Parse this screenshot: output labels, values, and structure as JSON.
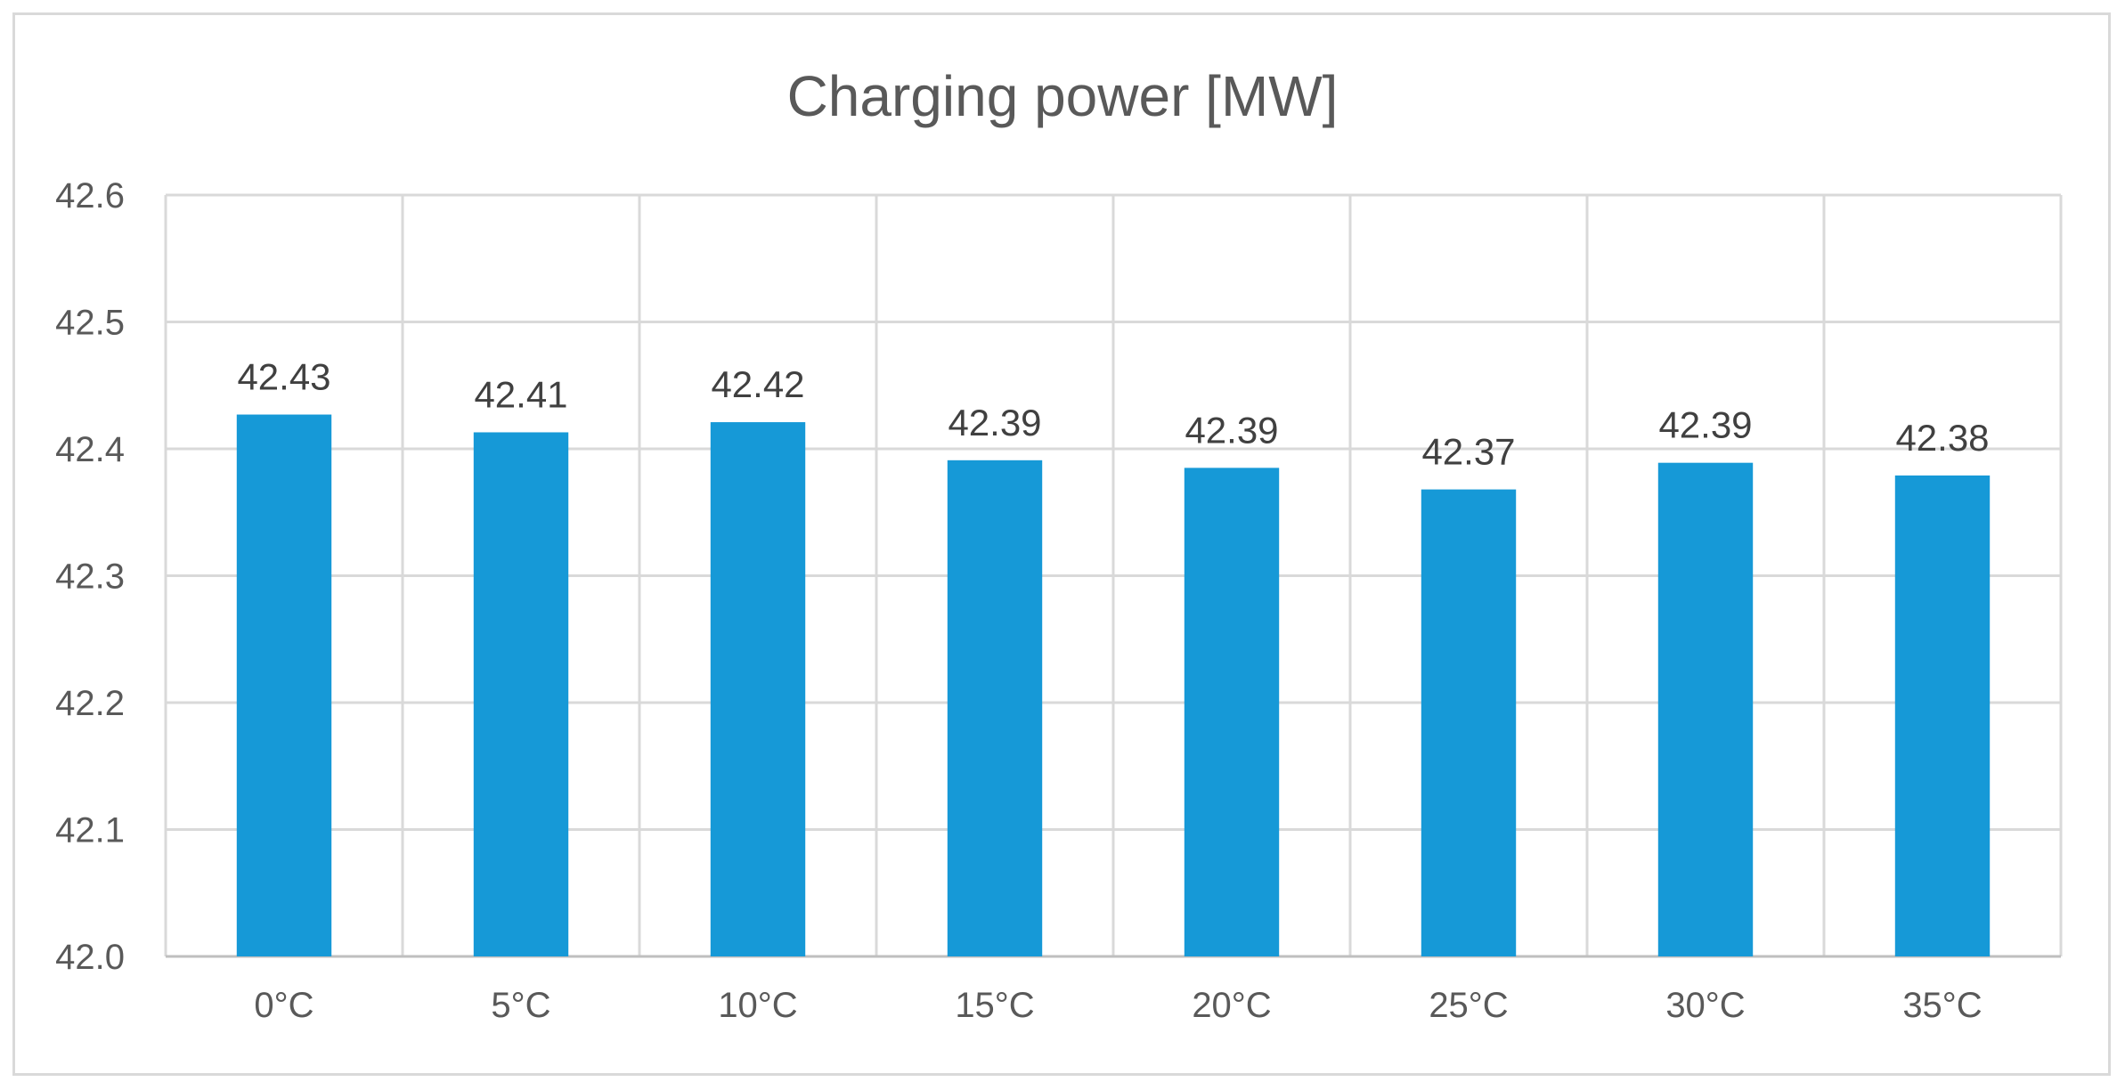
{
  "chart_data": {
    "type": "bar",
    "title": "Charging power [MW]",
    "xlabel": "",
    "ylabel": "",
    "categories": [
      "0°C",
      "5°C",
      "10°C",
      "15°C",
      "20°C",
      "25°C",
      "30°C",
      "35°C"
    ],
    "values": [
      42.427,
      42.413,
      42.421,
      42.391,
      42.385,
      42.368,
      42.389,
      42.379
    ],
    "data_labels": [
      "42.43",
      "42.41",
      "42.42",
      "42.39",
      "42.39",
      "42.37",
      "42.39",
      "42.38"
    ],
    "ylim": [
      42.0,
      42.6
    ],
    "yticks": [
      "42.0",
      "42.1",
      "42.2",
      "42.3",
      "42.4",
      "42.5",
      "42.6"
    ],
    "ytick_values": [
      42.0,
      42.1,
      42.2,
      42.3,
      42.4,
      42.5,
      42.6
    ],
    "grid": true,
    "legend": "none",
    "bar_color": "#1699d7",
    "grid_color": "#d9d9d9"
  }
}
